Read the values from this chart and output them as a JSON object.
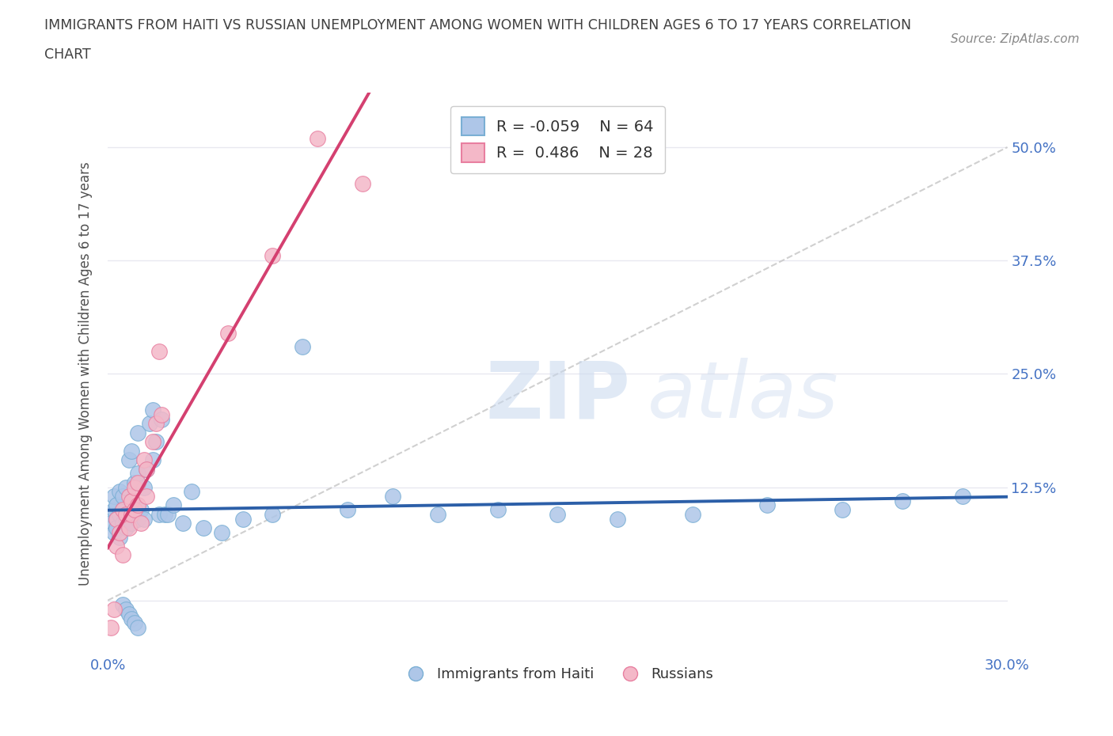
{
  "title_line1": "IMMIGRANTS FROM HAITI VS RUSSIAN UNEMPLOYMENT AMONG WOMEN WITH CHILDREN AGES 6 TO 17 YEARS CORRELATION",
  "title_line2": "CHART",
  "source": "Source: ZipAtlas.com",
  "ylabel": "Unemployment Among Women with Children Ages 6 to 17 years",
  "xlim": [
    0.0,
    0.3
  ],
  "ylim": [
    -0.06,
    0.56
  ],
  "haiti_color": "#aec6e8",
  "russia_color": "#f4b8c8",
  "haiti_edge": "#7aafd4",
  "russia_edge": "#e87fa0",
  "trend_haiti_color": "#2c5fa8",
  "trend_russia_color": "#d44070",
  "ref_line_color": "#c8c8c8",
  "legend_r_haiti": "R = -0.059",
  "legend_n_haiti": "N = 64",
  "legend_r_russia": "R =  0.486",
  "legend_n_russia": "N = 28",
  "haiti_x": [
    0.001,
    0.001,
    0.002,
    0.002,
    0.002,
    0.003,
    0.003,
    0.003,
    0.004,
    0.004,
    0.004,
    0.005,
    0.005,
    0.005,
    0.006,
    0.006,
    0.006,
    0.007,
    0.007,
    0.008,
    0.008,
    0.008,
    0.009,
    0.009,
    0.01,
    0.01,
    0.01,
    0.011,
    0.012,
    0.012,
    0.013,
    0.014,
    0.015,
    0.015,
    0.016,
    0.017,
    0.018,
    0.019,
    0.02,
    0.022,
    0.025,
    0.028,
    0.032,
    0.038,
    0.045,
    0.055,
    0.065,
    0.08,
    0.095,
    0.11,
    0.13,
    0.15,
    0.17,
    0.195,
    0.22,
    0.245,
    0.265,
    0.285,
    0.005,
    0.006,
    0.007,
    0.008,
    0.009,
    0.01
  ],
  "haiti_y": [
    0.095,
    0.085,
    0.1,
    0.115,
    0.075,
    0.09,
    0.105,
    0.08,
    0.095,
    0.12,
    0.07,
    0.085,
    0.1,
    0.115,
    0.09,
    0.08,
    0.125,
    0.095,
    0.155,
    0.085,
    0.11,
    0.165,
    0.13,
    0.095,
    0.185,
    0.14,
    0.09,
    0.1,
    0.125,
    0.09,
    0.145,
    0.195,
    0.21,
    0.155,
    0.175,
    0.095,
    0.2,
    0.095,
    0.095,
    0.105,
    0.085,
    0.12,
    0.08,
    0.075,
    0.09,
    0.095,
    0.28,
    0.1,
    0.115,
    0.095,
    0.1,
    0.095,
    0.09,
    0.095,
    0.105,
    0.1,
    0.11,
    0.115,
    -0.005,
    -0.01,
    -0.015,
    -0.02,
    -0.025,
    -0.03
  ],
  "russia_x": [
    0.001,
    0.002,
    0.003,
    0.003,
    0.004,
    0.005,
    0.005,
    0.006,
    0.007,
    0.007,
    0.008,
    0.008,
    0.009,
    0.009,
    0.01,
    0.01,
    0.011,
    0.012,
    0.013,
    0.013,
    0.015,
    0.016,
    0.017,
    0.018,
    0.04,
    0.055,
    0.07,
    0.085
  ],
  "russia_y": [
    -0.03,
    -0.01,
    0.06,
    0.09,
    0.075,
    0.05,
    0.1,
    0.095,
    0.08,
    0.115,
    0.095,
    0.11,
    0.1,
    0.125,
    0.105,
    0.13,
    0.085,
    0.155,
    0.145,
    0.115,
    0.175,
    0.195,
    0.275,
    0.205,
    0.295,
    0.38,
    0.51,
    0.46
  ],
  "watermark_zip": "ZIP",
  "watermark_atlas": "atlas",
  "background_color": "#ffffff",
  "grid_color": "#e8e8f0",
  "title_color": "#404040",
  "axis_label_color": "#505050",
  "tick_label_color": "#4472c4"
}
